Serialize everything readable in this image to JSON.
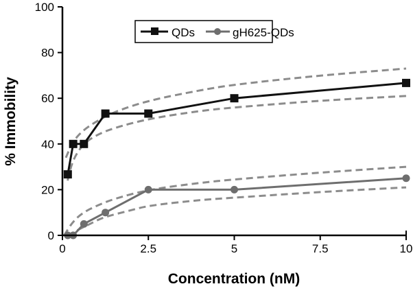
{
  "chart_data": {
    "type": "line",
    "xlabel": "Concentration (nM)",
    "ylabel": "% Immobility",
    "xlim": [
      0,
      10
    ],
    "ylim": [
      0,
      100
    ],
    "xticks": [
      0,
      2.5,
      5,
      7.5,
      10
    ],
    "xtick_labels": [
      "0",
      "2.5",
      "5",
      "7.5",
      "10"
    ],
    "yticks": [
      0,
      20,
      40,
      60,
      80,
      100
    ],
    "ytick_labels": [
      "0",
      "20",
      "40",
      "60",
      "80",
      "100"
    ],
    "grid": false,
    "legend_position": "top-center",
    "series": [
      {
        "name": "QDs",
        "color": "#111111",
        "marker": "square",
        "x": [
          0.156,
          0.3125,
          0.625,
          1.25,
          2.5,
          5,
          10
        ],
        "y": [
          26.7,
          40,
          40,
          53.3,
          53.3,
          60,
          66.7
        ]
      },
      {
        "name": "gH625-QDs",
        "color": "#6e6e6e",
        "marker": "circle",
        "x": [
          0.156,
          0.3125,
          0.625,
          1.25,
          2.5,
          5,
          10
        ],
        "y": [
          0,
          0,
          5,
          10,
          20,
          20,
          25
        ]
      }
    ],
    "bands": [
      {
        "of": "QDs",
        "bound": "upper",
        "x": [
          0.1,
          0.3,
          0.6,
          1,
          1.5,
          2.5,
          4,
          5,
          7.5,
          10
        ],
        "y": [
          34,
          41,
          46,
          50,
          54,
          59,
          63.5,
          66,
          70,
          73
        ]
      },
      {
        "of": "QDs",
        "bound": "lower",
        "x": [
          0.15,
          0.3,
          0.6,
          1,
          1.5,
          2.5,
          4,
          5,
          7.5,
          10
        ],
        "y": [
          24,
          33,
          40,
          44,
          47,
          51,
          54.5,
          56,
          59,
          61
        ]
      },
      {
        "of": "gH625-QDs",
        "bound": "upper",
        "x": [
          0.05,
          0.3,
          0.6,
          1,
          1.5,
          2.5,
          4,
          5,
          7.5,
          10
        ],
        "y": [
          0,
          6,
          10,
          13,
          16,
          20,
          23,
          24.5,
          27.5,
          30
        ]
      },
      {
        "of": "gH625-QDs",
        "bound": "lower",
        "x": [
          0.15,
          0.4,
          0.8,
          1.2,
          2,
          2.5,
          4,
          5,
          7.5,
          10
        ],
        "y": [
          0,
          2,
          5,
          8,
          11,
          13,
          15.5,
          16.5,
          19,
          21
        ]
      }
    ],
    "band_color": "#8c8c8c"
  }
}
